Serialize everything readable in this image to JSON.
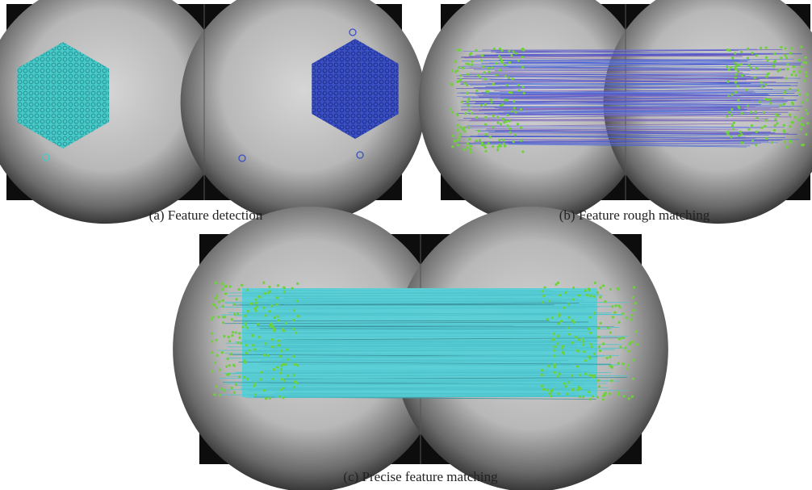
{
  "panels": [
    {
      "caption": "(a) Feature detection"
    },
    {
      "caption": "(b) Feature rough matching"
    },
    {
      "caption": "(c) Precise feature matching"
    }
  ]
}
